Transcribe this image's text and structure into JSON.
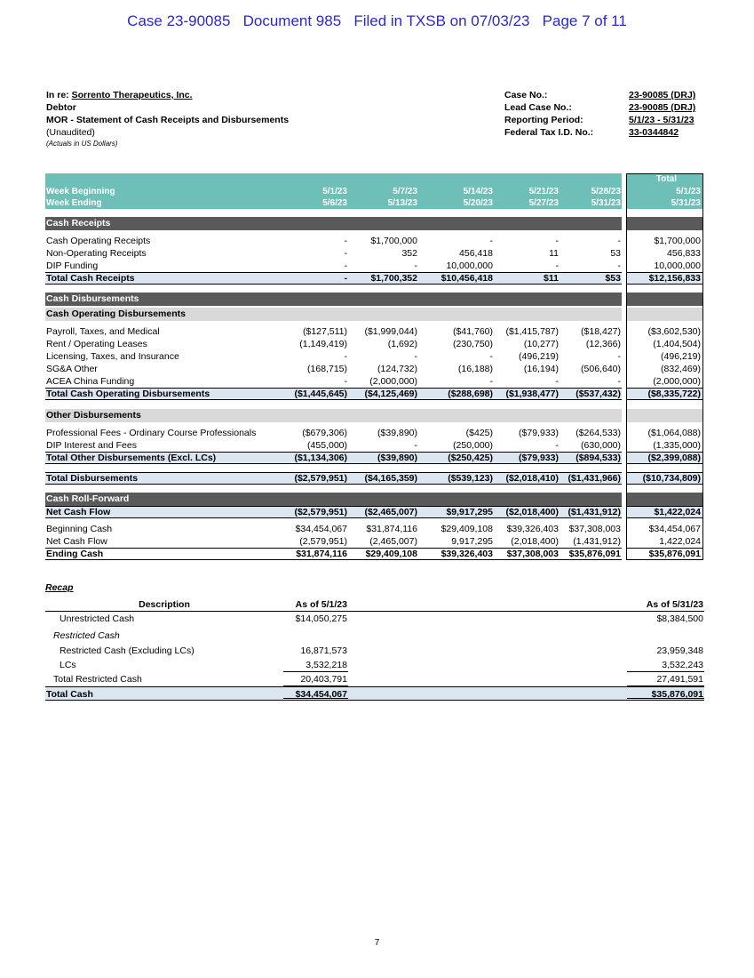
{
  "stamp": "Case 23-90085   Document 985   Filed in TXSB on 07/03/23   Page 7 of 11",
  "header": {
    "in_re": "In re:",
    "debtor_name": "Sorrento Therapeutics, Inc.",
    "debtor": "Debtor",
    "statement": "MOR - Statement of Cash Receipts and Disbursements",
    "unaudited": "(Unaudited)",
    "note": "(Actuals in US Dollars)",
    "fields": [
      {
        "label": "Case No.:",
        "value": "23-90085 (DRJ)"
      },
      {
        "label": "Lead Case No.:",
        "value": "23-90085 (DRJ)"
      },
      {
        "label": "Reporting Period:",
        "value": "5/1/23 - 5/31/23"
      },
      {
        "label": "Federal Tax I.D. No.:",
        "value": "33-0344842"
      }
    ]
  },
  "table": {
    "total_label": "Total",
    "head": [
      [
        "Week Beginning",
        "5/1/23",
        "5/7/23",
        "5/14/23",
        "5/21/23",
        "5/28/23",
        "5/1/23"
      ],
      [
        "Week Ending",
        "5/6/23",
        "5/13/23",
        "5/20/23",
        "5/27/23",
        "5/31/23",
        "5/31/23"
      ]
    ],
    "rows": [
      {
        "kind": "section",
        "cells": [
          "Cash Receipts"
        ]
      },
      {
        "kind": "item",
        "cells": [
          "Cash Operating Receipts",
          "-",
          "$1,700,000",
          "-",
          "-",
          "-",
          "$1,700,000"
        ]
      },
      {
        "kind": "item",
        "cells": [
          "Non-Operating Receipts",
          "-",
          "352",
          "456,418",
          "11",
          "53",
          "456,833"
        ]
      },
      {
        "kind": "item",
        "cells": [
          "DIP Funding",
          "-",
          "-",
          "10,000,000",
          "-",
          "-",
          "10,000,000"
        ]
      },
      {
        "kind": "total",
        "cells": [
          "Total Cash Receipts",
          "-",
          "$1,700,352",
          "$10,456,418",
          "$11",
          "$53",
          "$12,156,833"
        ]
      },
      {
        "kind": "section",
        "cells": [
          "Cash Disbursements"
        ]
      },
      {
        "kind": "subsection",
        "cells": [
          "Cash Operating Disbursements"
        ]
      },
      {
        "kind": "item",
        "cells": [
          "Payroll, Taxes, and Medical",
          "($127,511)",
          "($1,999,044)",
          "($41,760)",
          "($1,415,787)",
          "($18,427)",
          "($3,602,530)"
        ]
      },
      {
        "kind": "item",
        "cells": [
          "Rent / Operating Leases",
          "(1,149,419)",
          "(1,692)",
          "(230,750)",
          "(10,277)",
          "(12,366)",
          "(1,404,504)"
        ]
      },
      {
        "kind": "item",
        "cells": [
          "Licensing, Taxes, and Insurance",
          "-",
          "-",
          "-",
          "(496,219)",
          "-",
          "(496,219)"
        ]
      },
      {
        "kind": "item",
        "cells": [
          "SG&A Other",
          "(168,715)",
          "(124,732)",
          "(16,188)",
          "(16,194)",
          "(506,640)",
          "(832,469)"
        ]
      },
      {
        "kind": "item",
        "cells": [
          "ACEA China Funding",
          "-",
          "(2,000,000)",
          "-",
          "-",
          "-",
          "(2,000,000)"
        ]
      },
      {
        "kind": "total",
        "cells": [
          "Total Cash Operating Disbursements",
          "($1,445,645)",
          "($4,125,469)",
          "($288,698)",
          "($1,938,477)",
          "($537,432)",
          "($8,335,722)"
        ]
      },
      {
        "kind": "subsection",
        "cells": [
          "Other Disbursements"
        ]
      },
      {
        "kind": "item",
        "cells": [
          "Professional Fees - Ordinary Course Professionals",
          "($679,306)",
          "($39,890)",
          "($425)",
          "($79,933)",
          "($264,533)",
          "($1,064,088)"
        ]
      },
      {
        "kind": "item",
        "cells": [
          "DIP Interest and Fees",
          "(455,000)",
          "-",
          "(250,000)",
          "-",
          "(630,000)",
          "(1,335,000)"
        ]
      },
      {
        "kind": "total",
        "cells": [
          "Total Other Disbursements (Excl. LCs)",
          "($1,134,306)",
          "($39,890)",
          "($250,425)",
          "($79,933)",
          "($894,533)",
          "($2,399,088)"
        ]
      },
      {
        "kind": "grand",
        "cells": [
          "Total Disbursements",
          "($2,579,951)",
          "($4,165,359)",
          "($539,123)",
          "($2,018,410)",
          "($1,431,966)",
          "($10,734,809)"
        ]
      },
      {
        "kind": "section",
        "cells": [
          "Cash Roll-Forward"
        ]
      },
      {
        "kind": "net",
        "cells": [
          "Net Cash Flow",
          "($2,579,951)",
          "($2,465,007)",
          "$9,917,295",
          "($2,018,400)",
          "($1,431,912)",
          "$1,422,024"
        ]
      },
      {
        "kind": "item",
        "cells": [
          "Beginning Cash",
          "$34,454,067",
          "$31,874,116",
          "$29,409,108",
          "$39,326,403",
          "$37,308,003",
          "$34,454,067"
        ]
      },
      {
        "kind": "item",
        "cells": [
          "Net Cash Flow",
          "(2,579,951)",
          "(2,465,007)",
          "9,917,295",
          "(2,018,400)",
          "(1,431,912)",
          "1,422,024"
        ]
      },
      {
        "kind": "end",
        "cells": [
          "Ending Cash",
          "$31,874,116",
          "$29,409,108",
          "$39,326,403",
          "$37,308,003",
          "$35,876,091",
          "$35,876,091"
        ]
      }
    ]
  },
  "recap": {
    "title": "Recap",
    "head": [
      "Description",
      "As of 5/1/23",
      "As of 5/31/23"
    ],
    "rows": [
      {
        "kind": "item",
        "cells": [
          "Unrestricted Cash",
          "$14,050,275",
          "$8,384,500"
        ]
      },
      {
        "kind": "heading",
        "cells": [
          "Restricted Cash"
        ]
      },
      {
        "kind": "item",
        "cells": [
          "Restricted Cash (Excluding LCs)",
          "16,871,573",
          "23,959,348"
        ]
      },
      {
        "kind": "last",
        "cells": [
          "LCs",
          "3,532,218",
          "3,532,243"
        ]
      },
      {
        "kind": "subtotal",
        "cells": [
          "Total Restricted Cash",
          "20,403,791",
          "27,491,591"
        ]
      },
      {
        "kind": "total",
        "cells": [
          "Total Cash",
          "$34,454,067",
          "$35,876,091"
        ]
      }
    ]
  },
  "page_number": "7"
}
